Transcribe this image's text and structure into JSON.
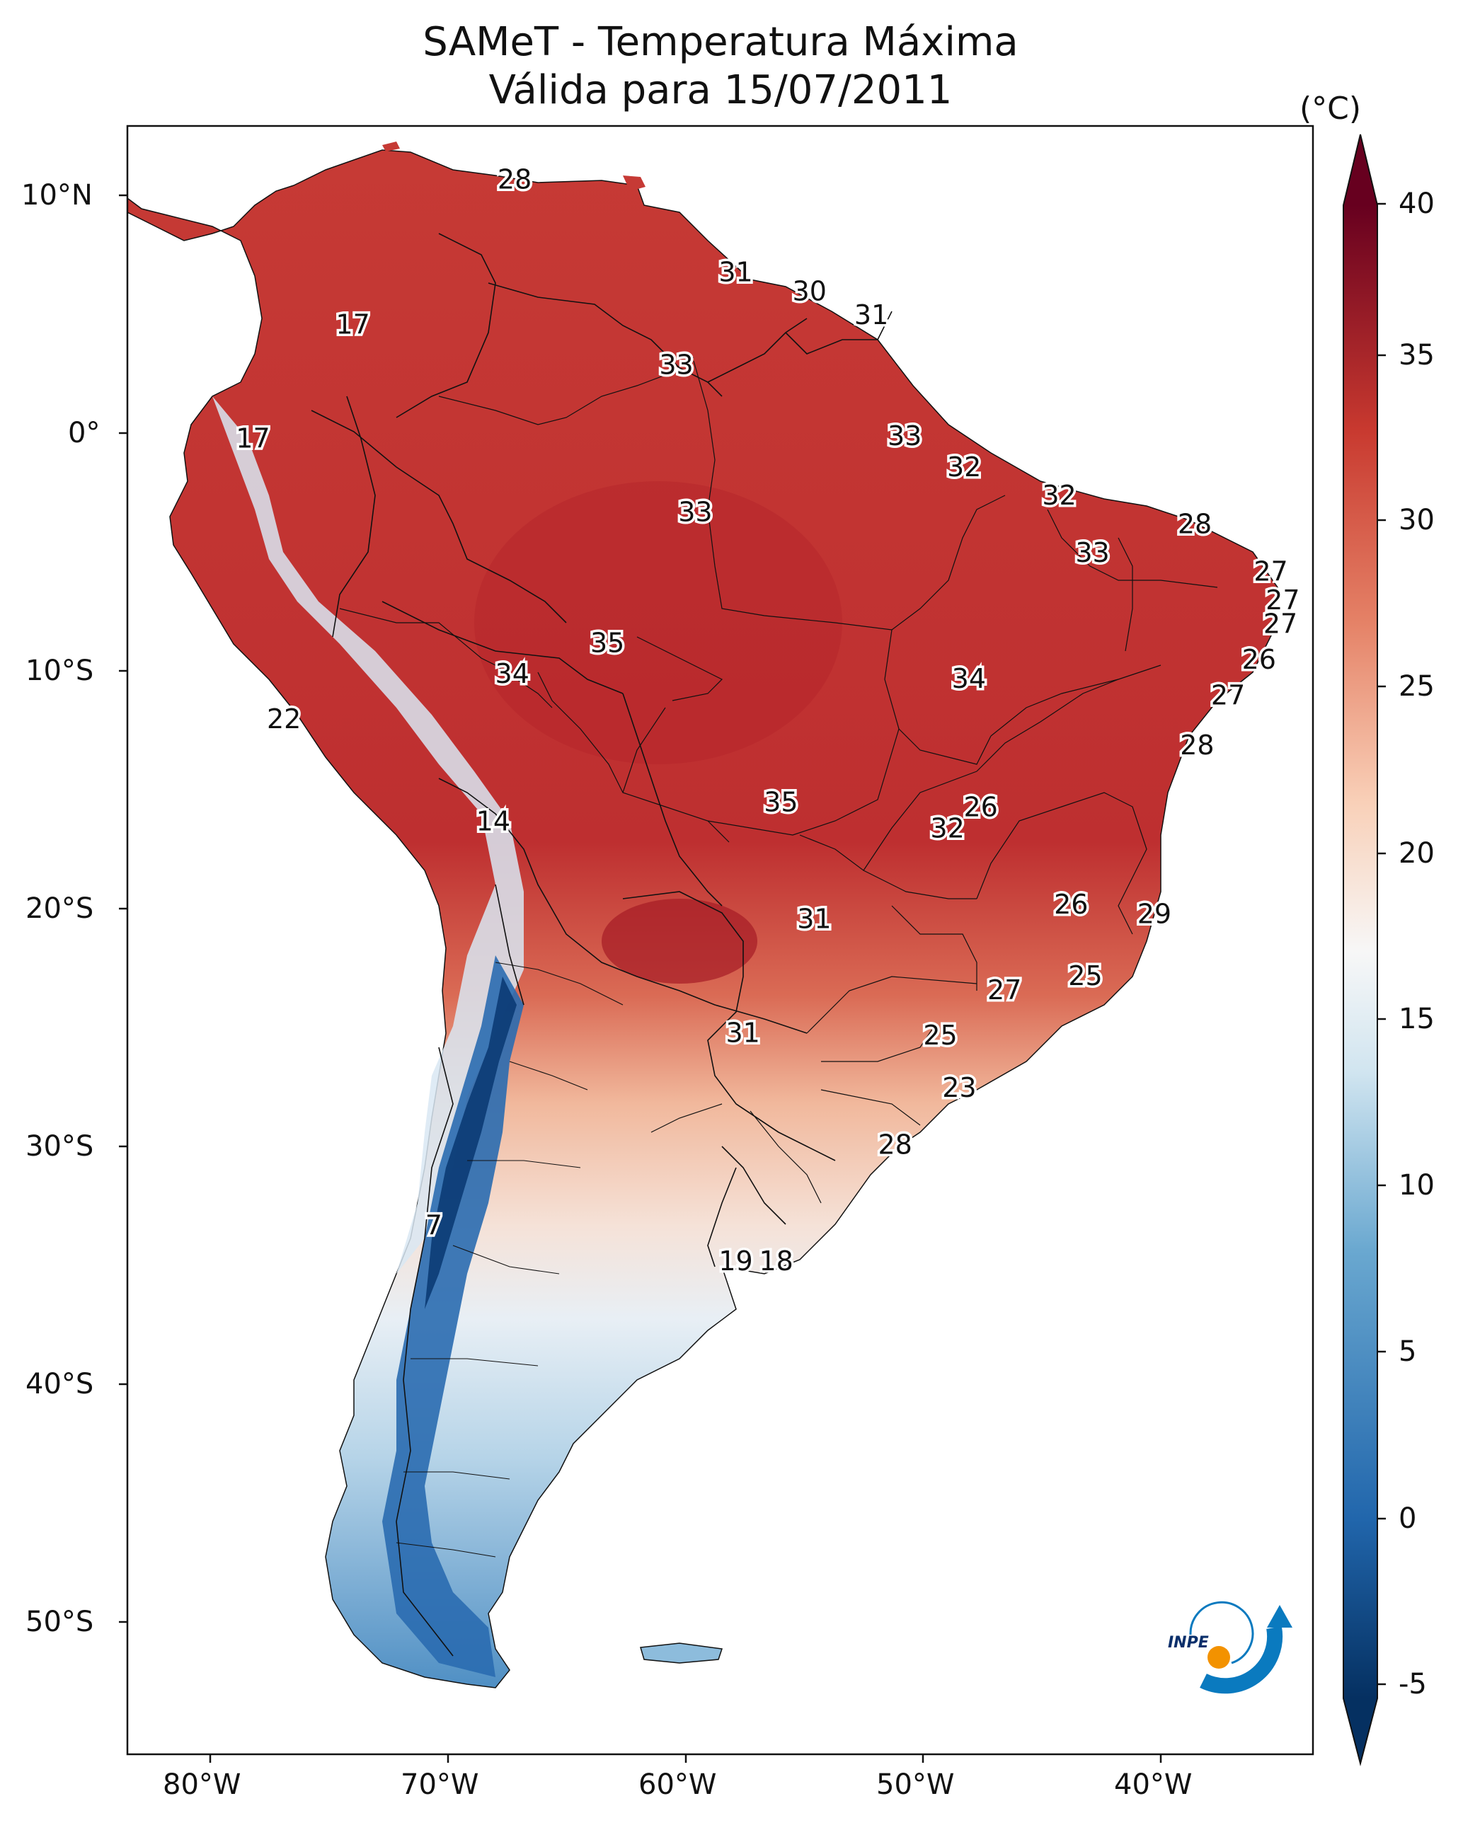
{
  "title": {
    "line1": "SAMeT - Temperatura Máxima",
    "line2": "Válida para 15/07/2011"
  },
  "axes": {
    "lon_ticks": [
      "80°W",
      "70°W",
      "60°W",
      "50°W",
      "40°W"
    ],
    "lat_ticks": [
      "10°N",
      "0°",
      "10°S",
      "20°S",
      "30°S",
      "40°S",
      "50°S"
    ]
  },
  "colorbar": {
    "unit": "(°C)",
    "ticks": [
      "40",
      "35",
      "30",
      "25",
      "20",
      "15",
      "10",
      "5",
      "0",
      "-5"
    ],
    "colors": {
      "hot": "#67001f",
      "warm": "#d6604d",
      "neutral": "#f7f7f7",
      "cool": "#4393c3",
      "cold": "#053061"
    }
  },
  "logo": {
    "text": "INPE",
    "accent_color": "#f39200",
    "brand_color": "#0a7abf"
  },
  "labels": [
    {
      "text": "28",
      "lat": 10.6,
      "lon": -67.2
    },
    {
      "text": "31",
      "lat": 6.7,
      "lon": -57.9
    },
    {
      "text": "30",
      "lat": 5.9,
      "lon": -54.8
    },
    {
      "text": "31",
      "lat": 4.9,
      "lon": -52.2
    },
    {
      "text": "17",
      "lat": 4.5,
      "lon": -74.0
    },
    {
      "text": "33",
      "lat": 2.8,
      "lon": -60.4
    },
    {
      "text": "17",
      "lat": -0.3,
      "lon": -78.2
    },
    {
      "text": "33",
      "lat": -0.2,
      "lon": -50.8
    },
    {
      "text": "32",
      "lat": -1.5,
      "lon": -48.3
    },
    {
      "text": "32",
      "lat": -2.7,
      "lon": -44.3
    },
    {
      "text": "28",
      "lat": -3.9,
      "lon": -38.6
    },
    {
      "text": "33",
      "lat": -3.4,
      "lon": -59.6
    },
    {
      "text": "33",
      "lat": -5.1,
      "lon": -42.9
    },
    {
      "text": "27",
      "lat": -5.9,
      "lon": -35.4
    },
    {
      "text": "27",
      "lat": -7.1,
      "lon": -34.9
    },
    {
      "text": "27",
      "lat": -8.1,
      "lon": -35.0
    },
    {
      "text": "35",
      "lat": -8.9,
      "lon": -63.3
    },
    {
      "text": "26",
      "lat": -9.6,
      "lon": -35.9
    },
    {
      "text": "34",
      "lat": -10.2,
      "lon": -67.3
    },
    {
      "text": "34",
      "lat": -10.4,
      "lon": -48.1
    },
    {
      "text": "27",
      "lat": -11.1,
      "lon": -37.2
    },
    {
      "text": "22",
      "lat": -12.1,
      "lon": -76.9
    },
    {
      "text": "28",
      "lat": -13.2,
      "lon": -38.5
    },
    {
      "text": "35",
      "lat": -15.6,
      "lon": -56.0
    },
    {
      "text": "26",
      "lat": -15.8,
      "lon": -47.6
    },
    {
      "text": "14",
      "lat": -16.4,
      "lon": -68.1
    },
    {
      "text": "32",
      "lat": -16.7,
      "lon": -49.0
    },
    {
      "text": "26",
      "lat": -19.9,
      "lon": -43.8
    },
    {
      "text": "29",
      "lat": -20.3,
      "lon": -40.3
    },
    {
      "text": "31",
      "lat": -20.5,
      "lon": -54.6
    },
    {
      "text": "25",
      "lat": -22.9,
      "lon": -43.2
    },
    {
      "text": "27",
      "lat": -23.5,
      "lon": -46.6
    },
    {
      "text": "31",
      "lat": -25.3,
      "lon": -57.6
    },
    {
      "text": "25",
      "lat": -25.4,
      "lon": -49.3
    },
    {
      "text": "23",
      "lat": -27.6,
      "lon": -48.5
    },
    {
      "text": "28",
      "lat": -30.0,
      "lon": -51.2
    },
    {
      "text": "7",
      "lat": -33.4,
      "lon": -70.6
    },
    {
      "text": "19",
      "lat": -34.9,
      "lon": -57.9
    },
    {
      "text": "18",
      "lat": -34.9,
      "lon": -56.2
    }
  ]
}
